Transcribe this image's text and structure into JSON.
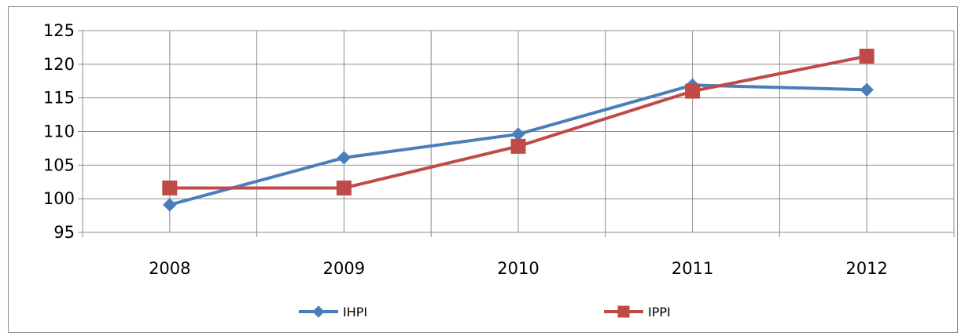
{
  "chart_data": {
    "type": "line",
    "categories": [
      "2008",
      "2009",
      "2010",
      "2011",
      "2012"
    ],
    "series": [
      {
        "name": "IHPI",
        "values": [
          99.1,
          106.1,
          109.6,
          116.9,
          116.2
        ],
        "color": "#4a7ebb",
        "marker": "diamond"
      },
      {
        "name": "IPPI",
        "values": [
          101.6,
          101.6,
          107.8,
          116.0,
          121.2
        ],
        "color": "#be4b48",
        "marker": "square"
      }
    ],
    "ylim": [
      95,
      125
    ],
    "yticks": [
      "95",
      "100",
      "105",
      "110",
      "115",
      "120",
      "125"
    ],
    "grid": true,
    "legend_position": "bottom",
    "title": "",
    "xlabel": "",
    "ylabel": ""
  }
}
